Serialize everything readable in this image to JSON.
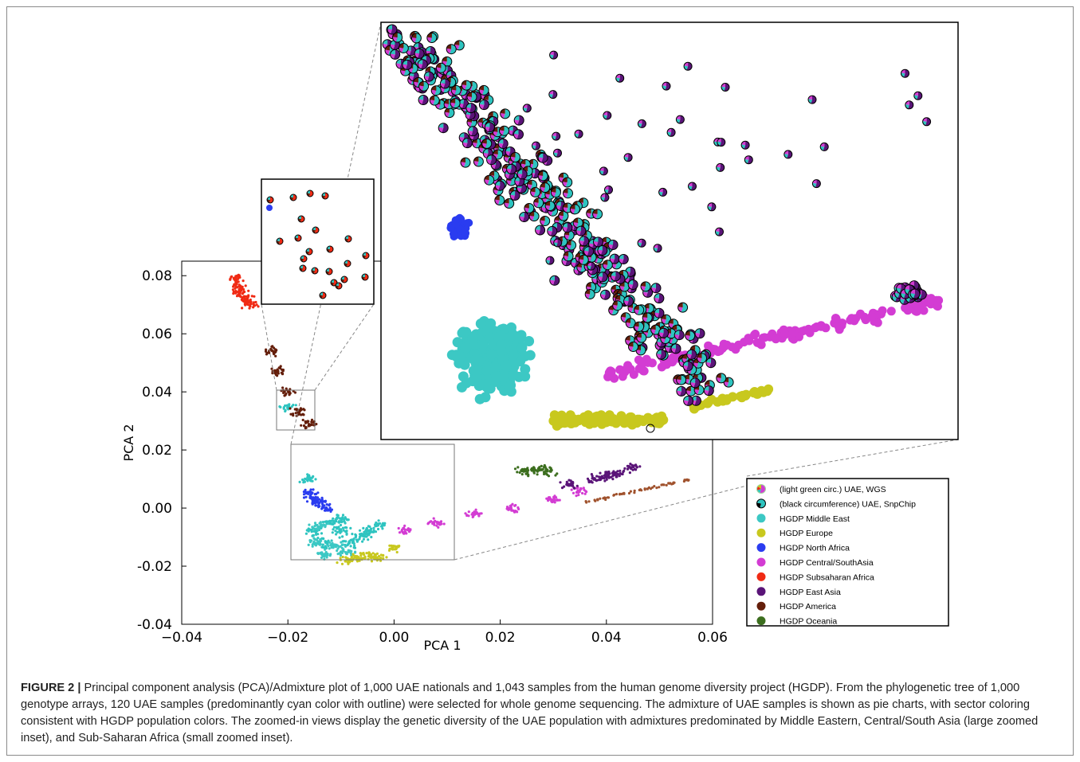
{
  "chart_data": {
    "type": "scatter",
    "xlabel": "PCA 1",
    "ylabel": "PCA 2",
    "xlim": [
      -0.04,
      0.06
    ],
    "ylim": [
      -0.04,
      0.085
    ],
    "xticks": [
      "−0.04",
      "−0.02",
      "0.00",
      "0.02",
      "0.04",
      "0.06"
    ],
    "yticks": [
      "-0.04",
      "-0.02",
      "0.00",
      "0.02",
      "0.04",
      "0.06",
      "0.08"
    ],
    "xtick_values": [
      -0.04,
      -0.02,
      0.0,
      0.02,
      0.04,
      0.06
    ],
    "ytick_values": [
      -0.04,
      -0.02,
      0.0,
      0.02,
      0.04,
      0.06,
      0.08
    ],
    "series": [
      {
        "name": "(light green circ.) UAE, WGS",
        "color": "#2ec4c0",
        "points": [
          [
            -0.012,
            -0.005
          ],
          [
            -0.01,
            -0.008
          ],
          [
            -0.006,
            -0.01
          ]
        ]
      },
      {
        "name": "(black circumference) UAE, SnpChip",
        "color": "#2ec4c0",
        "points": [
          [
            -0.015,
            -0.008
          ],
          [
            -0.013,
            -0.012
          ],
          [
            -0.01,
            -0.004
          ],
          [
            -0.008,
            -0.012
          ],
          [
            -0.005,
            -0.008
          ],
          [
            -0.003,
            -0.006
          ],
          [
            -0.016,
            0.01
          ],
          [
            -0.02,
            0.035
          ]
        ]
      },
      {
        "name": "HGDP Middle East",
        "color": "#3cc8c4",
        "points": [
          [
            -0.015,
            -0.012
          ],
          [
            -0.013,
            -0.016
          ],
          [
            -0.011,
            -0.013
          ],
          [
            -0.009,
            -0.015
          ],
          [
            -0.014,
            -0.006
          ]
        ]
      },
      {
        "name": "HGDP Europe",
        "color": "#c8c81e",
        "points": [
          [
            -0.009,
            -0.018
          ],
          [
            -0.007,
            -0.017
          ],
          [
            -0.005,
            -0.016
          ],
          [
            -0.003,
            -0.017
          ],
          [
            0.0,
            -0.014
          ]
        ]
      },
      {
        "name": "HGDP North Africa",
        "color": "#2a3cf0",
        "points": [
          [
            -0.016,
            0.005
          ],
          [
            -0.015,
            0.003
          ],
          [
            -0.014,
            0.002
          ],
          [
            -0.013,
            0.0
          ]
        ]
      },
      {
        "name": "HGDP Central/SouthAsia",
        "color": "#d33cd3",
        "points": [
          [
            0.002,
            -0.008
          ],
          [
            0.008,
            -0.005
          ],
          [
            0.015,
            -0.002
          ],
          [
            0.022,
            0.0
          ],
          [
            0.03,
            0.003
          ],
          [
            0.035,
            0.006
          ]
        ]
      },
      {
        "name": "HGDP Subsaharan Africa",
        "color": "#f02a14",
        "points": [
          [
            -0.03,
            0.079
          ],
          [
            -0.029,
            0.076
          ],
          [
            -0.028,
            0.072
          ],
          [
            -0.027,
            0.07
          ],
          [
            -0.029,
            0.074
          ]
        ]
      },
      {
        "name": "HGDP East Asia",
        "color": "#5a1478",
        "points": [
          [
            0.033,
            0.008
          ],
          [
            0.038,
            0.01
          ],
          [
            0.042,
            0.012
          ],
          [
            0.045,
            0.014
          ],
          [
            0.04,
            0.011
          ]
        ]
      },
      {
        "name": "HGDP America",
        "color": "#641e0a",
        "points": [
          [
            -0.023,
            0.054
          ],
          [
            -0.022,
            0.047
          ],
          [
            -0.02,
            0.04
          ],
          [
            -0.018,
            0.033
          ],
          [
            -0.016,
            0.029
          ]
        ]
      },
      {
        "name": "HGDP Oceania",
        "color": "#3c6e1e",
        "points": [
          [
            0.024,
            0.013
          ],
          [
            0.027,
            0.013
          ],
          [
            0.029,
            0.013
          ]
        ]
      }
    ],
    "extra_series_colors": {
      "Americas brown tail": "#a0522d"
    }
  },
  "caption": {
    "label": "FIGURE 2 |",
    "text": " Principal component analysis (PCA)/Admixture plot of 1,000 UAE nationals and 1,043 samples from the human genome diversity project (HGDP). From the phylogenetic tree of 1,000 genotype arrays, 120 UAE samples (predominantly cyan color with outline) were selected for whole genome sequencing. The admixture of UAE samples is shown as pie charts, with sector coloring consistent with HGDP population colors. The zoomed-in views display the genetic diversity of the UAE population with admixtures predominated by Middle Eastern, Central/South Asia (large zoomed inset), and Sub-Saharan Africa (small zoomed inset)."
  }
}
